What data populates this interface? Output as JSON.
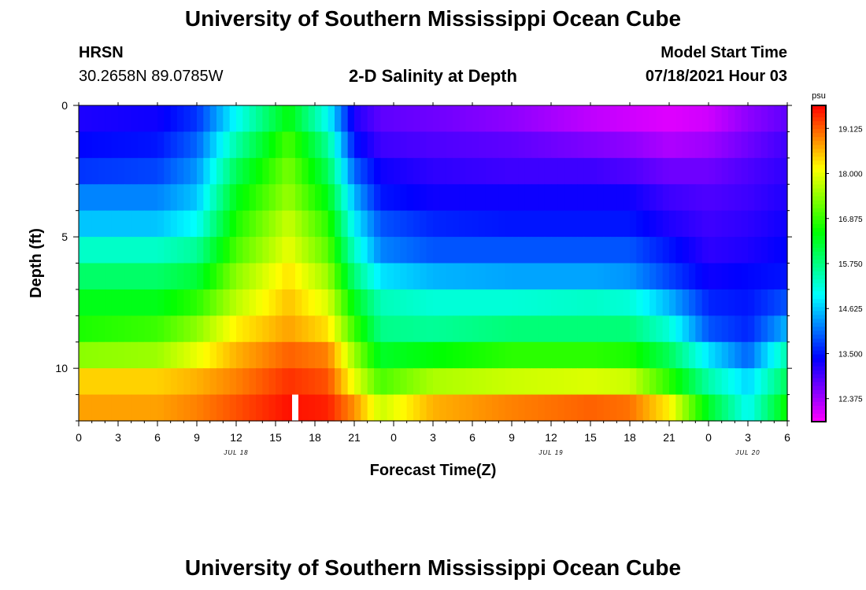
{
  "header": {
    "title": "University of Southern Mississippi Ocean Cube",
    "station": "HRSN",
    "coordinates": "30.2658N  89.0785W",
    "subtitle": "2-D Salinity at Depth",
    "model_start_label": "Model Start Time",
    "model_start_value": "07/18/2021 Hour 03"
  },
  "footer": {
    "title": "University of Southern Mississippi Ocean Cube"
  },
  "chart_data": {
    "type": "heatmap",
    "title": "2-D Salinity at Depth",
    "xlabel": "Forecast Time(Z)",
    "ylabel": "Depth (ft)",
    "x_range_hours": [
      0,
      54
    ],
    "y_range_ft": [
      0,
      12
    ],
    "x_ticks": [
      "0",
      "3",
      "6",
      "9",
      "12",
      "15",
      "18",
      "21",
      "0",
      "3",
      "6",
      "9",
      "12",
      "15",
      "18",
      "21",
      "0",
      "3",
      "6"
    ],
    "y_ticks": [
      "0",
      "5",
      "10"
    ],
    "date_labels": [
      {
        "text": "JUL 18",
        "hour": 12
      },
      {
        "text": "JUL 19",
        "hour": 36
      },
      {
        "text": "JUL 20",
        "hour": 51
      }
    ],
    "colorbar": {
      "unit": "psu",
      "min": 11.8,
      "max": 19.7,
      "ticks": [
        "19.125",
        "18.000",
        "16.875",
        "15.750",
        "14.625",
        "13.500",
        "12.375"
      ],
      "tick_values": [
        19.125,
        18.0,
        16.875,
        15.75,
        14.625,
        13.5,
        12.375
      ]
    },
    "time_keys_hours": [
      0,
      6,
      9,
      12,
      16,
      19,
      21,
      23,
      27,
      33,
      39,
      42,
      45,
      48,
      51,
      54
    ],
    "layers": [
      {
        "depth_ft": 0.5,
        "values": [
          13.2,
          13.3,
          13.7,
          15.0,
          16.5,
          15.0,
          13.2,
          12.8,
          12.7,
          12.5,
          12.2,
          12.1,
          12.0,
          12.1,
          12.5,
          12.8
        ]
      },
      {
        "depth_ft": 1.5,
        "values": [
          13.4,
          13.5,
          14.0,
          15.5,
          17.0,
          15.6,
          13.5,
          13.0,
          12.9,
          12.8,
          12.6,
          12.5,
          12.3,
          12.4,
          12.7,
          13.0
        ]
      },
      {
        "depth_ft": 2.5,
        "values": [
          13.7,
          13.8,
          14.3,
          16.0,
          17.3,
          16.0,
          14.0,
          13.3,
          13.1,
          13.0,
          13.0,
          12.9,
          12.7,
          12.7,
          12.9,
          13.1
        ]
      },
      {
        "depth_ft": 3.5,
        "values": [
          14.2,
          14.2,
          14.6,
          16.4,
          17.5,
          16.4,
          14.5,
          13.5,
          13.3,
          13.3,
          13.3,
          13.3,
          13.0,
          12.9,
          13.0,
          13.2
        ]
      },
      {
        "depth_ft": 4.5,
        "values": [
          14.6,
          14.6,
          15.0,
          16.7,
          17.8,
          16.8,
          14.9,
          13.9,
          13.6,
          13.5,
          13.5,
          13.5,
          13.2,
          13.0,
          13.1,
          13.3
        ]
      },
      {
        "depth_ft": 5.5,
        "values": [
          15.3,
          15.3,
          15.6,
          17.0,
          18.0,
          17.1,
          15.3,
          14.2,
          13.9,
          13.9,
          13.9,
          13.9,
          13.5,
          13.1,
          13.2,
          13.4
        ]
      },
      {
        "depth_ft": 6.5,
        "values": [
          15.9,
          15.9,
          16.2,
          17.4,
          18.3,
          17.5,
          15.8,
          14.8,
          14.5,
          14.4,
          14.4,
          14.3,
          13.8,
          13.3,
          13.4,
          13.5
        ]
      },
      {
        "depth_ft": 7.5,
        "values": [
          16.4,
          16.4,
          16.8,
          17.7,
          18.5,
          17.9,
          16.4,
          15.4,
          15.2,
          15.2,
          15.3,
          15.2,
          14.5,
          13.6,
          13.5,
          13.9
        ]
      },
      {
        "depth_ft": 8.5,
        "values": [
          16.7,
          16.9,
          17.4,
          18.2,
          18.7,
          18.3,
          16.9,
          15.7,
          15.6,
          15.8,
          15.8,
          15.8,
          15.2,
          13.9,
          13.6,
          14.5
        ]
      },
      {
        "depth_ft": 9.5,
        "values": [
          17.4,
          17.5,
          18.0,
          18.6,
          19.1,
          18.9,
          17.5,
          16.3,
          16.5,
          16.8,
          16.8,
          16.7,
          16.0,
          14.8,
          14.0,
          15.5
        ]
      },
      {
        "depth_ft": 10.5,
        "values": [
          18.4,
          18.4,
          18.6,
          18.9,
          19.4,
          19.2,
          18.0,
          17.0,
          17.6,
          17.8,
          17.9,
          17.8,
          16.8,
          15.5,
          14.7,
          16.0
        ]
      },
      {
        "depth_ft": 11.5,
        "values": [
          18.7,
          18.7,
          18.9,
          19.2,
          19.6,
          19.5,
          18.8,
          17.8,
          18.6,
          18.9,
          19.1,
          19.0,
          18.2,
          16.3,
          15.0,
          16.6
        ]
      }
    ],
    "missing_cell": {
      "hour": 16.5,
      "depth_ft": 11.5
    }
  }
}
